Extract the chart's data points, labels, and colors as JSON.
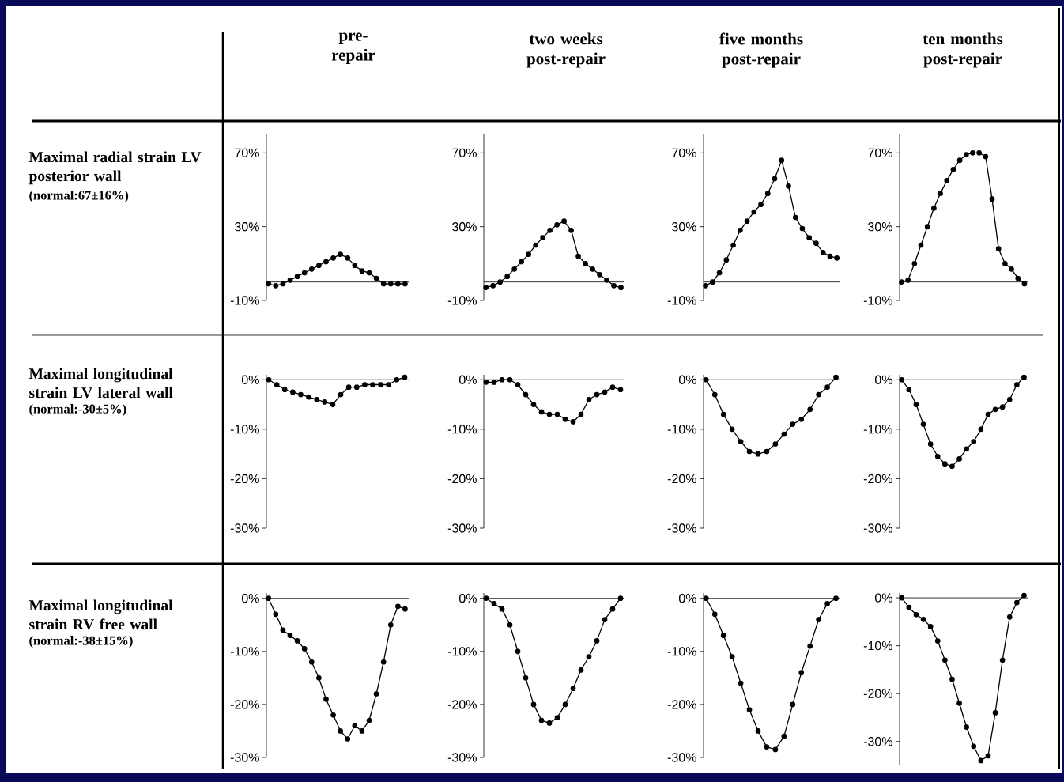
{
  "chart_data": [
    {
      "type": "line",
      "title": "pre-repair",
      "ylabel": "Maximal radial strain LV posterior wall",
      "annotations": [
        "(normal:67±16%)"
      ],
      "categories": [
        null,
        null,
        null,
        null,
        null,
        null,
        null,
        null,
        null,
        null,
        null,
        null,
        null,
        null,
        null,
        null,
        null,
        null,
        null,
        null
      ],
      "series": [
        {
          "color": "#000000",
          "values": [
            -1,
            -2,
            -1,
            1,
            3,
            5,
            7,
            9,
            11,
            13,
            15,
            13,
            9,
            6,
            5,
            2,
            -1,
            -1,
            -1,
            -1
          ]
        }
      ],
      "ylim": [
        -10,
        80
      ],
      "yticks": [
        {
          "value": -10,
          "label": "-10%"
        },
        {
          "value": 30,
          "label": "30%"
        },
        {
          "value": 70,
          "label": "70%"
        }
      ],
      "ref_lines": [
        {
          "axis": "y",
          "value": 0
        }
      ],
      "marker": "circle",
      "line_style": "solid",
      "tick_labels": "y"
    },
    {
      "type": "line",
      "title": "two weeks post-repair",
      "categories": [
        null,
        null,
        null,
        null,
        null,
        null,
        null,
        null,
        null,
        null,
        null,
        null,
        null,
        null,
        null,
        null,
        null,
        null,
        null,
        null
      ],
      "series": [
        {
          "color": "#000000",
          "values": [
            -3,
            -2,
            0,
            3,
            7,
            11,
            15,
            20,
            24,
            28,
            31,
            33,
            28,
            14,
            10,
            7,
            4,
            1,
            -2,
            -3
          ]
        }
      ],
      "ylim": [
        -10,
        80
      ],
      "yticks": [
        {
          "value": -10,
          "label": "-10%"
        },
        {
          "value": 30,
          "label": "30%"
        },
        {
          "value": 70,
          "label": "70%"
        }
      ],
      "ref_lines": [
        {
          "axis": "y",
          "value": 0
        }
      ],
      "marker": "circle",
      "line_style": "solid",
      "tick_labels": "y"
    },
    {
      "type": "line",
      "title": "five months post-repair",
      "categories": [
        null,
        null,
        null,
        null,
        null,
        null,
        null,
        null,
        null,
        null,
        null,
        null,
        null,
        null,
        null,
        null,
        null,
        null,
        null,
        null
      ],
      "series": [
        {
          "color": "#000000",
          "values": [
            -2,
            0,
            5,
            12,
            20,
            28,
            33,
            38,
            42,
            48,
            56,
            66,
            52,
            35,
            29,
            24,
            21,
            16,
            14,
            13
          ]
        }
      ],
      "ylim": [
        -10,
        80
      ],
      "yticks": [
        {
          "value": -10,
          "label": "-10%"
        },
        {
          "value": 30,
          "label": "30%"
        },
        {
          "value": 70,
          "label": "70%"
        }
      ],
      "ref_lines": [
        {
          "axis": "y",
          "value": 0
        }
      ],
      "marker": "circle",
      "line_style": "solid",
      "tick_labels": "y"
    },
    {
      "type": "line",
      "title": "ten months post-repair",
      "categories": [
        null,
        null,
        null,
        null,
        null,
        null,
        null,
        null,
        null,
        null,
        null,
        null,
        null,
        null,
        null,
        null,
        null,
        null,
        null,
        null
      ],
      "series": [
        {
          "color": "#000000",
          "values": [
            0,
            1,
            10,
            20,
            30,
            40,
            48,
            55,
            61,
            66,
            69,
            70,
            70,
            68,
            45,
            18,
            10,
            7,
            2,
            -1
          ]
        }
      ],
      "ylim": [
        -10,
        80
      ],
      "yticks": [
        {
          "value": -10,
          "label": "-10%"
        },
        {
          "value": 30,
          "label": "30%"
        },
        {
          "value": 70,
          "label": "70%"
        }
      ],
      "ref_lines": [
        {
          "axis": "y",
          "value": 0
        }
      ],
      "marker": "circle",
      "line_style": "solid",
      "tick_labels": "y"
    },
    {
      "type": "line",
      "ylabel": "Maximal longitudinal strain LV lateral wall",
      "annotations": [
        "(normal:-30±5%)"
      ],
      "categories": [
        null,
        null,
        null,
        null,
        null,
        null,
        null,
        null,
        null,
        null,
        null,
        null,
        null,
        null,
        null,
        null,
        null,
        null
      ],
      "series": [
        {
          "color": "#000000",
          "values": [
            0,
            -1,
            -2,
            -2.5,
            -3,
            -3.5,
            -4,
            -4.5,
            -5,
            -3,
            -1.5,
            -1.5,
            -1,
            -1,
            -1,
            -1,
            0,
            0.5
          ]
        }
      ],
      "ylim": [
        -30,
        1
      ],
      "yticks": [
        {
          "value": -30,
          "label": "-30%"
        },
        {
          "value": -20,
          "label": "-20%"
        },
        {
          "value": -10,
          "label": "-10%"
        },
        {
          "value": 0,
          "label": "0%"
        }
      ],
      "ref_lines": [
        {
          "axis": "y",
          "value": 0
        }
      ],
      "marker": "circle",
      "line_style": "solid",
      "tick_labels": "y"
    },
    {
      "type": "line",
      "categories": [
        null,
        null,
        null,
        null,
        null,
        null,
        null,
        null,
        null,
        null,
        null,
        null,
        null,
        null,
        null,
        null,
        null,
        null
      ],
      "series": [
        {
          "color": "#000000",
          "values": [
            -0.5,
            -0.5,
            0,
            0,
            -1,
            -3,
            -5,
            -6.5,
            -7,
            -7,
            -8,
            -8.5,
            -7,
            -4,
            -3,
            -2.5,
            -1.5,
            -2
          ]
        }
      ],
      "ylim": [
        -30,
        1
      ],
      "yticks": [
        {
          "value": -30,
          "label": "-30%"
        },
        {
          "value": -20,
          "label": "-20%"
        },
        {
          "value": -10,
          "label": "-10%"
        },
        {
          "value": 0,
          "label": "0%"
        }
      ],
      "ref_lines": [
        {
          "axis": "y",
          "value": 0
        }
      ],
      "marker": "circle",
      "line_style": "solid",
      "tick_labels": "y"
    },
    {
      "type": "line",
      "categories": [
        null,
        null,
        null,
        null,
        null,
        null,
        null,
        null,
        null,
        null,
        null,
        null,
        null,
        null,
        null,
        null
      ],
      "series": [
        {
          "color": "#000000",
          "values": [
            0,
            -3,
            -7,
            -10,
            -12.5,
            -14.5,
            -15,
            -14.5,
            -13,
            -11,
            -9,
            -8,
            -6,
            -3,
            -1.5,
            0.5
          ]
        }
      ],
      "ylim": [
        -30,
        1
      ],
      "yticks": [
        {
          "value": -30,
          "label": "-30%"
        },
        {
          "value": -20,
          "label": "-20%"
        },
        {
          "value": -10,
          "label": "-10%"
        },
        {
          "value": 0,
          "label": "0%"
        }
      ],
      "ref_lines": [
        {
          "axis": "y",
          "value": 0
        }
      ],
      "marker": "circle",
      "line_style": "solid",
      "tick_labels": "y"
    },
    {
      "type": "line",
      "categories": [
        null,
        null,
        null,
        null,
        null,
        null,
        null,
        null,
        null,
        null,
        null,
        null,
        null,
        null,
        null,
        null,
        null,
        null
      ],
      "series": [
        {
          "color": "#000000",
          "values": [
            0,
            -2,
            -5,
            -9,
            -13,
            -15.5,
            -17,
            -17.5,
            -16,
            -14,
            -12.5,
            -10,
            -7,
            -6,
            -5.5,
            -4,
            -1,
            0.5
          ]
        }
      ],
      "ylim": [
        -30,
        1
      ],
      "yticks": [
        {
          "value": -30,
          "label": "-30%"
        },
        {
          "value": -20,
          "label": "-20%"
        },
        {
          "value": -10,
          "label": "-10%"
        },
        {
          "value": 0,
          "label": "0%"
        }
      ],
      "ref_lines": [
        {
          "axis": "y",
          "value": 0
        }
      ],
      "marker": "circle",
      "line_style": "solid",
      "tick_labels": "y"
    },
    {
      "type": "line",
      "ylabel": "Maximal longitudinal strain RV free wall",
      "annotations": [
        "(normal:-38±15%)"
      ],
      "categories": [
        null,
        null,
        null,
        null,
        null,
        null,
        null,
        null,
        null,
        null,
        null,
        null,
        null,
        null,
        null,
        null,
        null,
        null,
        null,
        null
      ],
      "series": [
        {
          "color": "#000000",
          "values": [
            0,
            -3,
            -6,
            -7,
            -8,
            -9.5,
            -12,
            -15,
            -19,
            -22,
            -25,
            -26.5,
            -24,
            -25,
            -23,
            -18,
            -12,
            -5,
            -1.5,
            -2
          ]
        }
      ],
      "ylim": [
        -30,
        1
      ],
      "yticks": [
        {
          "value": -30,
          "label": "-30%"
        },
        {
          "value": -20,
          "label": "-20%"
        },
        {
          "value": -10,
          "label": "-10%"
        },
        {
          "value": 0,
          "label": "0%"
        }
      ],
      "ref_lines": [
        {
          "axis": "y",
          "value": 0
        }
      ],
      "marker": "circle",
      "line_style": "solid",
      "tick_labels": "y"
    },
    {
      "type": "line",
      "categories": [
        null,
        null,
        null,
        null,
        null,
        null,
        null,
        null,
        null,
        null,
        null,
        null,
        null,
        null,
        null,
        null,
        null,
        null
      ],
      "series": [
        {
          "color": "#000000",
          "values": [
            0,
            -1,
            -2,
            -5,
            -10,
            -15,
            -20,
            -23,
            -23.5,
            -22.5,
            -20,
            -17,
            -13.5,
            -11,
            -8,
            -4,
            -2,
            0
          ]
        }
      ],
      "ylim": [
        -30,
        1
      ],
      "yticks": [
        {
          "value": -30,
          "label": "-30%"
        },
        {
          "value": -20,
          "label": "-20%"
        },
        {
          "value": -10,
          "label": "-10%"
        },
        {
          "value": 0,
          "label": "0%"
        }
      ],
      "ref_lines": [
        {
          "axis": "y",
          "value": 0
        }
      ],
      "marker": "circle",
      "line_style": "solid",
      "tick_labels": "y"
    },
    {
      "type": "line",
      "categories": [
        null,
        null,
        null,
        null,
        null,
        null,
        null,
        null,
        null,
        null,
        null,
        null,
        null,
        null,
        null,
        null
      ],
      "series": [
        {
          "color": "#000000",
          "values": [
            0,
            -3,
            -7,
            -11,
            -16,
            -21,
            -25,
            -28,
            -28.5,
            -26,
            -20,
            -14,
            -9,
            -4,
            -1,
            0
          ]
        }
      ],
      "ylim": [
        -30,
        1
      ],
      "yticks": [
        {
          "value": -30,
          "label": "-30%"
        },
        {
          "value": -20,
          "label": "-20%"
        },
        {
          "value": -10,
          "label": "-10%"
        },
        {
          "value": 0,
          "label": "0%"
        }
      ],
      "ref_lines": [
        {
          "axis": "y",
          "value": 0
        }
      ],
      "marker": "circle",
      "line_style": "solid",
      "tick_labels": "y"
    },
    {
      "type": "line",
      "categories": [
        null,
        null,
        null,
        null,
        null,
        null,
        null,
        null,
        null,
        null,
        null,
        null,
        null,
        null,
        null,
        null,
        null,
        null
      ],
      "series": [
        {
          "color": "#000000",
          "values": [
            0,
            -2,
            -3.5,
            -4.5,
            -6,
            -9,
            -13,
            -17,
            -22,
            -27,
            -31,
            -34,
            -33,
            -24,
            -13,
            -4,
            -1,
            0.5
          ]
        }
      ],
      "ylim": [
        -35,
        1
      ],
      "yticks": [
        {
          "value": -30,
          "label": "-30%"
        },
        {
          "value": -20,
          "label": "-20%"
        },
        {
          "value": -10,
          "label": "-10%"
        },
        {
          "value": 0,
          "label": "0%"
        }
      ],
      "ref_lines": [
        {
          "axis": "y",
          "value": 0
        }
      ],
      "marker": "circle",
      "line_style": "solid",
      "tick_labels": "y"
    }
  ]
}
